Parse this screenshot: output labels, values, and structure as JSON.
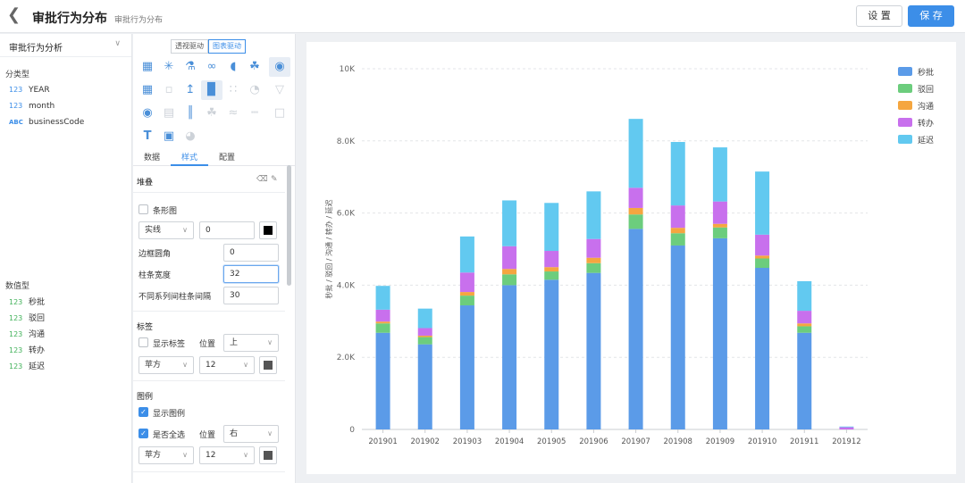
{
  "header": {
    "title": "审批行为分布",
    "subtitle": "审批行为分布",
    "settings_label": "设 置",
    "save_label": "保 存"
  },
  "fields": {
    "dataset": "审批行为分析",
    "dim_group": "分类型",
    "dims": [
      {
        "type": "123",
        "name": "YEAR"
      },
      {
        "type": "123",
        "name": "month"
      },
      {
        "type": "ABC",
        "name": "businessCode"
      }
    ],
    "measure_group": "数值型",
    "measures": [
      {
        "type": "123",
        "name": "秒批"
      },
      {
        "type": "123",
        "name": "驳回"
      },
      {
        "type": "123",
        "name": "沟通"
      },
      {
        "type": "123",
        "name": "转办"
      },
      {
        "type": "123",
        "name": "延迟"
      }
    ]
  },
  "config": {
    "mode": [
      "透视驱动",
      "图表驱动"
    ],
    "tabs": [
      "数据",
      "样式",
      "配置"
    ],
    "stack": {
      "header": "堆叠"
    },
    "bar": {
      "label": "条形图",
      "line_style": "实线",
      "line_width": "0",
      "color": "#000000",
      "radius_label": "边框圆角",
      "radius": "0",
      "width_label": "柱条宽度",
      "width": "32",
      "gap_label": "不同系列间柱条间隔",
      "gap": "30"
    },
    "labels": {
      "header": "标签",
      "show_label": "显示标签",
      "position_label": "位置",
      "position": "上",
      "font": "苹方",
      "size": "12",
      "color": "#555555"
    },
    "legend": {
      "header": "图例",
      "show_legend": "显示图例",
      "select_all": "是否全选",
      "position_label": "位置",
      "position": "右",
      "font": "苹方",
      "size": "12",
      "color": "#555555"
    }
  },
  "chart_data": {
    "type": "bar",
    "stacked": true,
    "categories": [
      "201901",
      "201902",
      "201903",
      "201904",
      "201905",
      "201906",
      "201907",
      "201908",
      "201909",
      "201910",
      "201911",
      "201912"
    ],
    "series": [
      {
        "name": "秒批",
        "color": "#5b9be8",
        "values": [
          2680,
          2360,
          3440,
          4000,
          4150,
          4340,
          5560,
          5100,
          5300,
          4480,
          2680,
          0
        ]
      },
      {
        "name": "驳回",
        "color": "#6ccd7d",
        "values": [
          260,
          200,
          270,
          300,
          230,
          270,
          400,
          340,
          300,
          260,
          180,
          0
        ]
      },
      {
        "name": "沟通",
        "color": "#f5a640",
        "values": [
          50,
          40,
          100,
          150,
          120,
          150,
          180,
          150,
          100,
          80,
          80,
          0
        ]
      },
      {
        "name": "转办",
        "color": "#c870ed",
        "values": [
          330,
          210,
          540,
          630,
          450,
          520,
          560,
          620,
          620,
          580,
          350,
          60
        ]
      },
      {
        "name": "延迟",
        "color": "#62c9f0",
        "values": [
          660,
          540,
          1000,
          1270,
          1330,
          1320,
          1910,
          1760,
          1500,
          1750,
          820,
          20
        ]
      }
    ],
    "yticks": [
      "0",
      "2.0K",
      "4.0K",
      "6.0K",
      "8.0K",
      "10K"
    ],
    "ylim": [
      0,
      10000
    ],
    "ylabel": "秒批 / 驳回 / 沟通 / 转办 / 延迟",
    "grid": true,
    "legend": "top-right"
  }
}
